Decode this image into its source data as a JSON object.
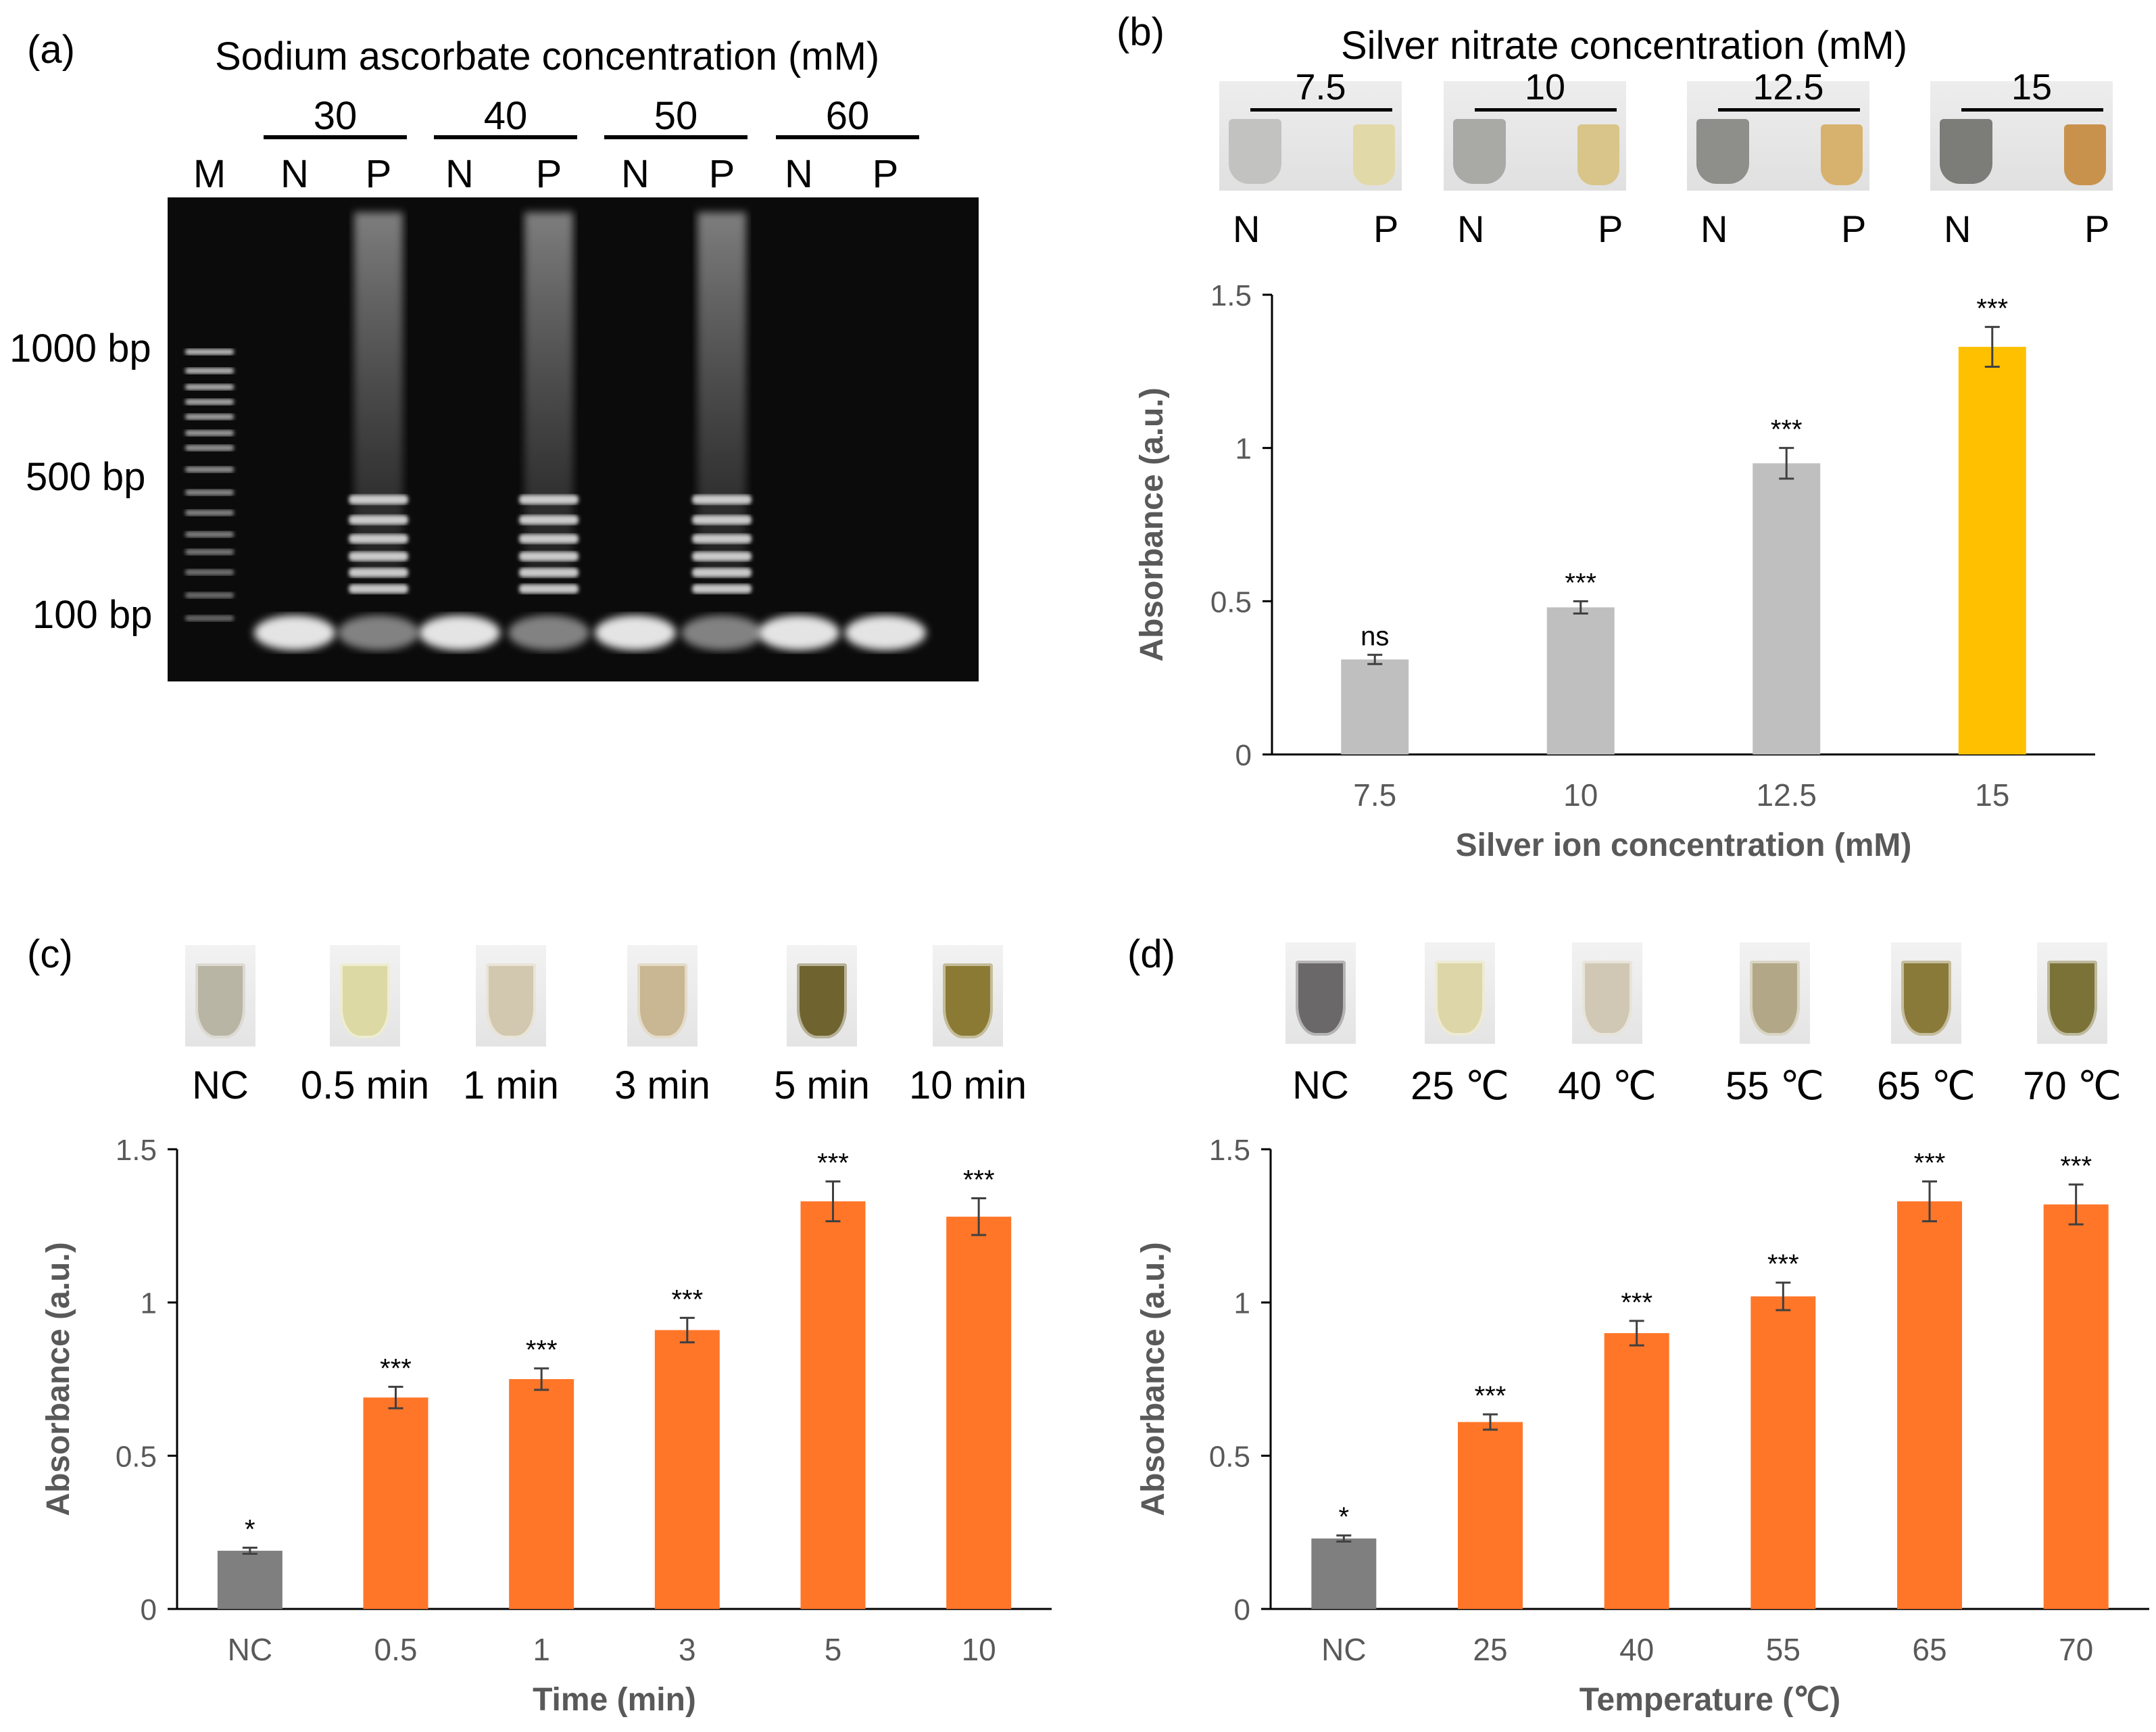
{
  "panels": {
    "a": {
      "label": "(a)",
      "title": "Sodium ascorbate concentration (mM)",
      "groups": [
        "30",
        "40",
        "50",
        "60"
      ],
      "lanes": [
        "M",
        "N",
        "P",
        "N",
        "P",
        "N",
        "P",
        "N",
        "P"
      ],
      "markers": [
        "1000 bp",
        "500 bp",
        "100 bp"
      ]
    },
    "b": {
      "label": "(b)",
      "title": "Silver nitrate concentration (mM)",
      "photo_groups": [
        "7.5",
        "10",
        "12.5",
        "15"
      ],
      "photo_lane_labels": [
        "N",
        "P"
      ]
    },
    "c": {
      "label": "(c)",
      "photo_labels": [
        "NC",
        "0.5 min",
        "1 min",
        "3 min",
        "5 min",
        "10 min"
      ]
    },
    "d": {
      "label": "(d)",
      "photo_labels": [
        "NC",
        "25 ℃",
        "40 ℃",
        "55 ℃",
        "65 ℃",
        "70 ℃"
      ]
    }
  },
  "chart_data": [
    {
      "id": "b",
      "type": "bar",
      "categories": [
        "7.5",
        "10",
        "12.5",
        "15"
      ],
      "values": [
        0.31,
        0.48,
        0.95,
        1.33
      ],
      "errors": [
        0.015,
        0.02,
        0.05,
        0.065
      ],
      "significance": [
        "ns",
        "***",
        "***",
        "***"
      ],
      "colors": [
        "#bfbfbf",
        "#bfbfbf",
        "#bfbfbf",
        "#ffc000"
      ],
      "xlabel": "Silver ion concentration (mM)",
      "ylabel": "Absorbance (a.u.)",
      "ylim": [
        0,
        1.5
      ],
      "yticks": [
        "0",
        "0.5",
        "1",
        "1.5"
      ]
    },
    {
      "id": "c",
      "type": "bar",
      "categories": [
        "NC",
        "0.5",
        "1",
        "3",
        "5",
        "10"
      ],
      "values": [
        0.19,
        0.69,
        0.75,
        0.91,
        1.33,
        1.28
      ],
      "errors": [
        0.01,
        0.035,
        0.035,
        0.04,
        0.065,
        0.06
      ],
      "significance": [
        "*",
        "***",
        "***",
        "***",
        "***",
        "***"
      ],
      "colors": [
        "#7f7f7f",
        "#ff7629",
        "#ff7629",
        "#ff7629",
        "#ff7629",
        "#ff7629"
      ],
      "xlabel": "Time (min)",
      "ylabel": "Absorbance (a.u.)",
      "ylim": [
        0,
        1.5
      ],
      "yticks": [
        "0",
        "0.5",
        "1",
        "1.5"
      ]
    },
    {
      "id": "d",
      "type": "bar",
      "categories": [
        "NC",
        "25",
        "40",
        "55",
        "65",
        "70"
      ],
      "values": [
        0.23,
        0.61,
        0.9,
        1.02,
        1.33,
        1.32
      ],
      "errors": [
        0.01,
        0.025,
        0.04,
        0.045,
        0.065,
        0.065
      ],
      "significance": [
        "*",
        "***",
        "***",
        "***",
        "***",
        "***"
      ],
      "colors": [
        "#7f7f7f",
        "#ff7629",
        "#ff7629",
        "#ff7629",
        "#ff7629",
        "#ff7629"
      ],
      "xlabel": "Temperature (℃)",
      "ylabel": "Absorbance (a.u.)",
      "ylim": [
        0,
        1.5
      ],
      "yticks": [
        "0",
        "0.5",
        "1",
        "1.5"
      ]
    }
  ]
}
